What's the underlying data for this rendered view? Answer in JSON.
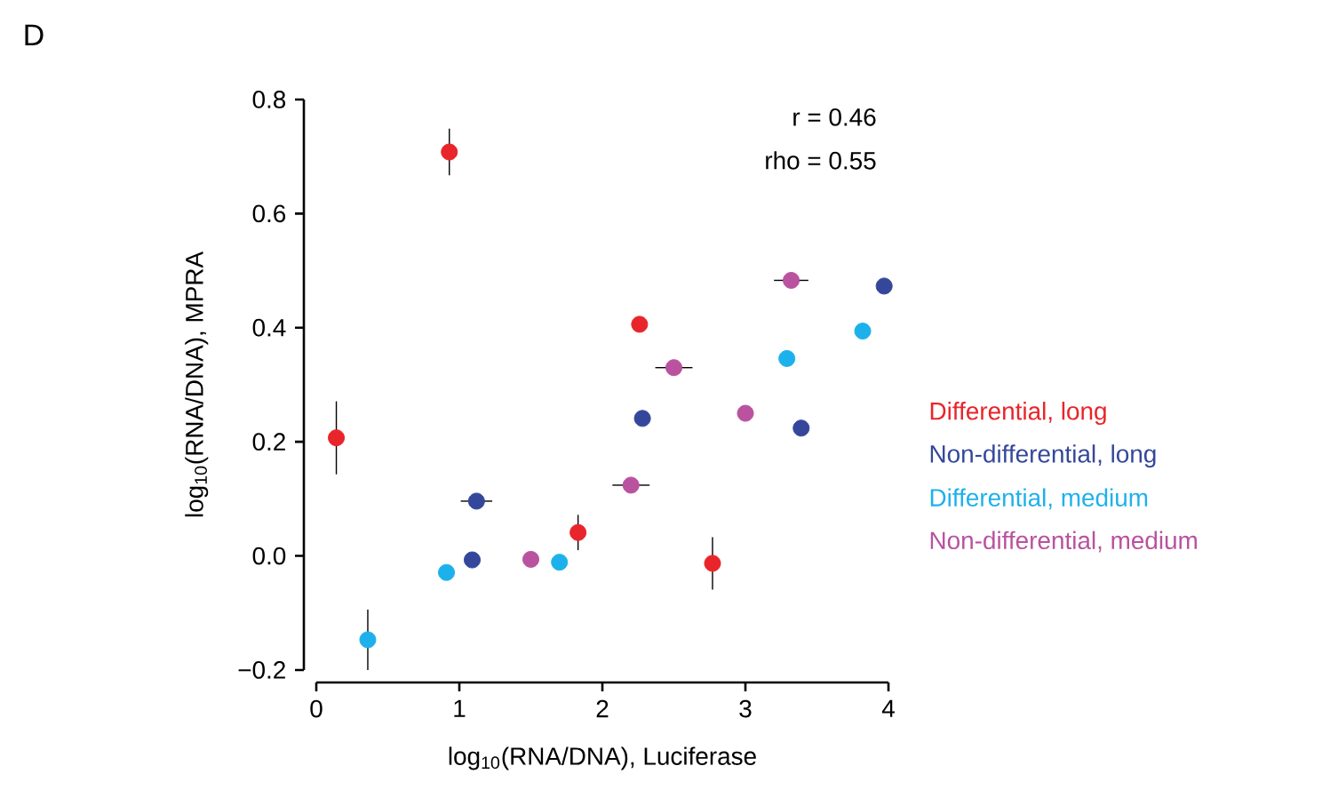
{
  "chart_data": {
    "type": "scatter",
    "title": "D",
    "xlabel": "log$_{10}$(RNA/DNA), Luciferase",
    "ylabel": "log$_{10}$(RNA/DNA), MPRA",
    "annotations": [
      "r = 0.46",
      "rho = 0.55"
    ],
    "xlim": [
      0,
      4
    ],
    "ylim": [
      -0.2,
      0.8
    ],
    "xticks": [
      0,
      1,
      2,
      3,
      4
    ],
    "yticks": [
      {
        "value": -0.2,
        "label": "−0.2"
      },
      {
        "value": 0,
        "label": "0.0"
      },
      {
        "value": 0.2,
        "label": "0.2"
      },
      {
        "value": 0.4,
        "label": "0.4"
      },
      {
        "value": 0.6,
        "label": "0.6"
      },
      {
        "value": 0.8,
        "label": "0.8"
      }
    ],
    "marker": "circle",
    "legend": "right",
    "grid": false,
    "series": [
      {
        "name": "Differential, long",
        "color": "#e8252a",
        "x": [
          0.93,
          0.14,
          2.26,
          1.83,
          2.77
        ],
        "values": [
          0.708,
          0.207,
          0.406,
          0.041,
          -0.013
        ],
        "errors": [
          0.041,
          0.064,
          null,
          0.031,
          0.046
        ]
      },
      {
        "name": "Non-differential, long",
        "color": "#34479a",
        "x": [
          1.12,
          1.09,
          2.28,
          3.39,
          3.97
        ],
        "values": [
          0.096,
          -0.007,
          0.241,
          0.224,
          0.473
        ],
        "xerrors": [
          0.11,
          null,
          null,
          null,
          null
        ]
      },
      {
        "name": "Differential, medium",
        "color": "#1db1ec",
        "x": [
          0.36,
          0.91,
          1.7,
          3.29,
          3.82
        ],
        "values": [
          -0.147,
          -0.029,
          -0.011,
          0.346,
          0.394
        ],
        "errors": [
          0.053,
          null,
          null,
          null,
          null
        ]
      },
      {
        "name": "Non-differential, medium",
        "color": "#b9529f",
        "x": [
          1.5,
          2.2,
          2.5,
          3.0,
          3.32
        ],
        "values": [
          -0.006,
          0.124,
          0.33,
          0.25,
          0.483
        ],
        "xerrors": [
          null,
          0.13,
          0.13,
          null,
          0.12
        ]
      }
    ]
  }
}
